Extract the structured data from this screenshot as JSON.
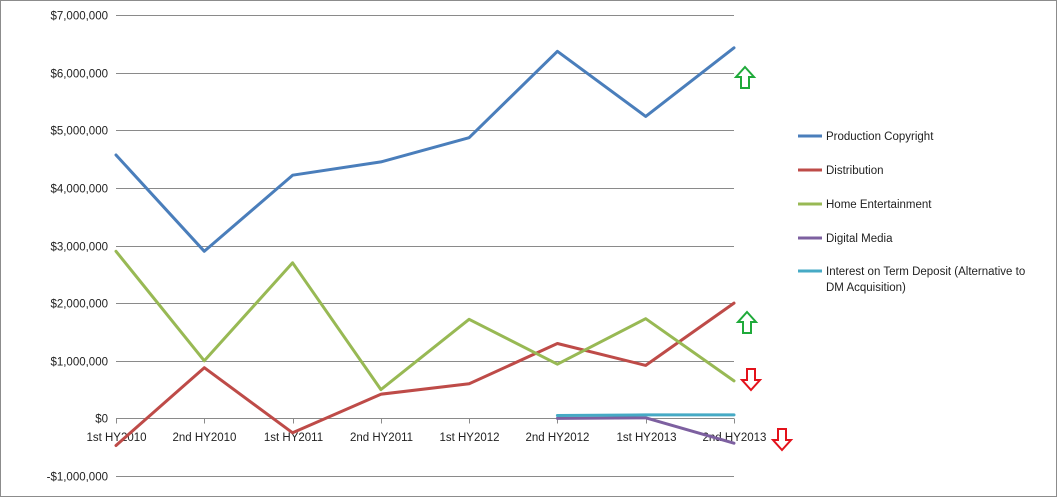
{
  "chart_data": {
    "type": "line",
    "categories": [
      "1st HY2010",
      "2nd HY2010",
      "1st HY2011",
      "2nd HY2011",
      "1st HY2012",
      "2nd HY2012",
      "1st HY2013",
      "2nd HY2013"
    ],
    "y_ticks": [
      -1000000,
      0,
      1000000,
      2000000,
      3000000,
      4000000,
      5000000,
      6000000,
      7000000
    ],
    "y_tick_labels": [
      "-$1,000,000",
      "$0",
      "$1,000,000",
      "$2,000,000",
      "$3,000,000",
      "$4,000,000",
      "$5,000,000",
      "$6,000,000",
      "$7,000,000"
    ],
    "ylim": [
      -1000000,
      7000000
    ],
    "grid": "horizontal",
    "legend_position": "right",
    "series": [
      {
        "name": "Production Copyright",
        "color": "#4a7ebb",
        "values": [
          4570000,
          2900000,
          4220000,
          4450000,
          4870000,
          6370000,
          5240000,
          6430000
        ]
      },
      {
        "name": "Distribution",
        "color": "#be4b48",
        "values": [
          -470000,
          880000,
          -250000,
          420000,
          600000,
          1300000,
          920000,
          2000000
        ]
      },
      {
        "name": "Home Entertainment",
        "color": "#98b954",
        "values": [
          2900000,
          1000000,
          2700000,
          500000,
          1720000,
          940000,
          1730000,
          650000
        ]
      },
      {
        "name": "Digital Media",
        "color": "#7d60a0",
        "values": [
          null,
          null,
          null,
          null,
          null,
          0,
          10000,
          -430000
        ]
      },
      {
        "name": "Interest on Term Deposit (Alternative to DM Acquisition)",
        "legend_lines": [
          "Interest on Term Deposit (Alternative to",
          "DM Acquisition)"
        ],
        "color": "#46aac5",
        "values": [
          null,
          null,
          null,
          null,
          null,
          50000,
          60000,
          60000
        ]
      }
    ],
    "annotations": [
      {
        "icon": "up-arrow-icon",
        "color": "#1faa3a",
        "series": "Production Copyright"
      },
      {
        "icon": "up-arrow-icon",
        "color": "#1faa3a",
        "series": "Distribution"
      },
      {
        "icon": "down-arrow-icon",
        "color": "#e3121b",
        "series": "Home Entertainment"
      },
      {
        "icon": "down-arrow-icon",
        "color": "#e3121b",
        "series": "Digital Media"
      }
    ]
  }
}
